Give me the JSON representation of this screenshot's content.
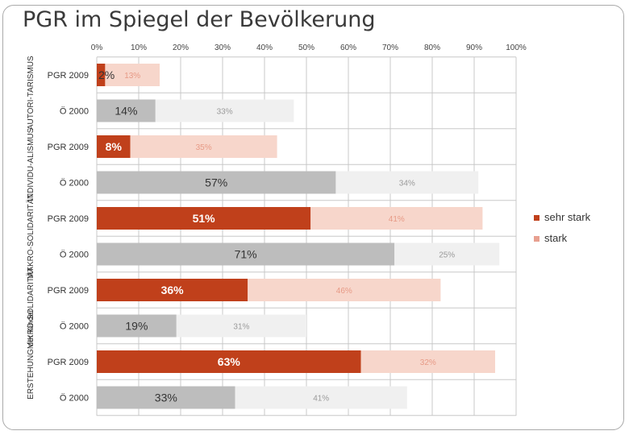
{
  "page_title": "PGR im Spiegel der Bevölkerung",
  "colors": {
    "pgr_sehr_stark": "#c0401b",
    "pgr_stark": "#f7d6cb",
    "oe_sehr_stark": "#bdbdbd",
    "oe_stark": "#f0f0f0",
    "grid": "#c8c8c8"
  },
  "chart_data": {
    "type": "bar",
    "orientation": "horizontal",
    "stacked": true,
    "title": "PGR im Spiegel der Bevölkerung",
    "xlim": [
      0,
      100
    ],
    "x_ticks": [
      "0%",
      "10%",
      "20%",
      "30%",
      "40%",
      "50%",
      "60%",
      "70%",
      "80%",
      "90%",
      "100%"
    ],
    "groups": [
      "AUTORI-TARISMUS",
      "INDIVIDU-ALISMUS",
      "MAKRO-SOLIDARITÄT",
      "MIKRO-SOLIDARITÄT",
      "ERSTEHUNG der Kinder"
    ],
    "rows": [
      {
        "group": 0,
        "label": "PGR 2009",
        "kind": "pgr",
        "sehr_stark": 2,
        "stark": 13,
        "sehr_stark_label": "2%",
        "stark_label": "13%"
      },
      {
        "group": 0,
        "label": "Ö 2000",
        "kind": "oe",
        "sehr_stark": 14,
        "stark": 33,
        "sehr_stark_label": "14%",
        "stark_label": "33%"
      },
      {
        "group": 1,
        "label": "PGR 2009",
        "kind": "pgr",
        "sehr_stark": 8,
        "stark": 35,
        "sehr_stark_label": "8%",
        "stark_label": "35%"
      },
      {
        "group": 1,
        "label": "Ö 2000",
        "kind": "oe",
        "sehr_stark": 57,
        "stark": 34,
        "sehr_stark_label": "57%",
        "stark_label": "34%"
      },
      {
        "group": 2,
        "label": "PGR 2009",
        "kind": "pgr",
        "sehr_stark": 51,
        "stark": 41,
        "sehr_stark_label": "51%",
        "stark_label": "41%"
      },
      {
        "group": 2,
        "label": "Ö 2000",
        "kind": "oe",
        "sehr_stark": 71,
        "stark": 25,
        "sehr_stark_label": "71%",
        "stark_label": "25%"
      },
      {
        "group": 3,
        "label": "PGR 2009",
        "kind": "pgr",
        "sehr_stark": 36,
        "stark": 46,
        "sehr_stark_label": "36%",
        "stark_label": "46%"
      },
      {
        "group": 3,
        "label": "Ö 2000",
        "kind": "oe",
        "sehr_stark": 19,
        "stark": 31,
        "sehr_stark_label": "19%",
        "stark_label": "31%"
      },
      {
        "group": 4,
        "label": "PGR 2009",
        "kind": "pgr",
        "sehr_stark": 63,
        "stark": 32,
        "sehr_stark_label": "63%",
        "stark_label": "32%"
      },
      {
        "group": 4,
        "label": "Ö 2000",
        "kind": "oe",
        "sehr_stark": 33,
        "stark": 41,
        "sehr_stark_label": "33%",
        "stark_label": "41%"
      }
    ],
    "legend": [
      {
        "label": "sehr stark",
        "color": "#c0401b"
      },
      {
        "label": "stark",
        "color": "#e8a090"
      }
    ],
    "legend_position": "right"
  }
}
